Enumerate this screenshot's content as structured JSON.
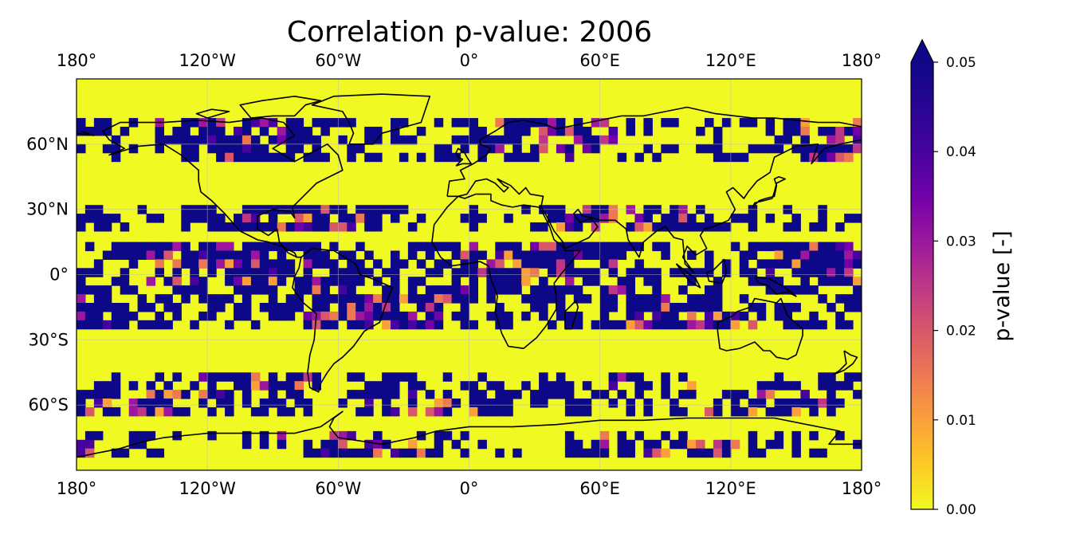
{
  "chart_data": {
    "type": "heatmap",
    "title": "Correlation p-value: 2006",
    "projection": "PlateCarree",
    "extent": {
      "lon": [
        -180,
        180
      ],
      "lat": [
        -90,
        90
      ]
    },
    "x_ticks": [
      {
        "value": -180,
        "label": "180°"
      },
      {
        "value": -120,
        "label": "120°W"
      },
      {
        "value": -60,
        "label": "60°W"
      },
      {
        "value": 0,
        "label": "0°"
      },
      {
        "value": 60,
        "label": "60°E"
      },
      {
        "value": 120,
        "label": "120°E"
      },
      {
        "value": 180,
        "label": "180°"
      }
    ],
    "y_ticks": [
      {
        "value": 60,
        "label": "60°N"
      },
      {
        "value": 30,
        "label": "30°N"
      },
      {
        "value": 0,
        "label": "0°"
      },
      {
        "value": -30,
        "label": "30°S"
      },
      {
        "value": -60,
        "label": "60°S"
      }
    ],
    "gridlines": true,
    "coastlines": true,
    "colorbar": {
      "label": "p-value [-]",
      "cmap": "plasma_r",
      "range": [
        0,
        0.05
      ],
      "extend": "max",
      "ticks": [
        "0.00",
        "0.01",
        "0.02",
        "0.03",
        "0.04",
        "0.05"
      ],
      "tick_values": [
        0,
        0.01,
        0.02,
        0.03,
        0.04,
        0.05
      ]
    },
    "low_color": "#f0f921",
    "high_color": "#0d0887",
    "significant_bands": [
      {
        "lat_min": 55,
        "lat_max": 72,
        "coverage": 0.55
      },
      {
        "lat_min": 22,
        "lat_max": 32,
        "coverage": 0.6
      },
      {
        "lat_min": -25,
        "lat_max": 15,
        "coverage": 0.65
      },
      {
        "lat_min": -62,
        "lat_max": -45,
        "coverage": 0.5
      },
      {
        "lat_min": -82,
        "lat_max": -72,
        "coverage": 0.45
      }
    ]
  }
}
